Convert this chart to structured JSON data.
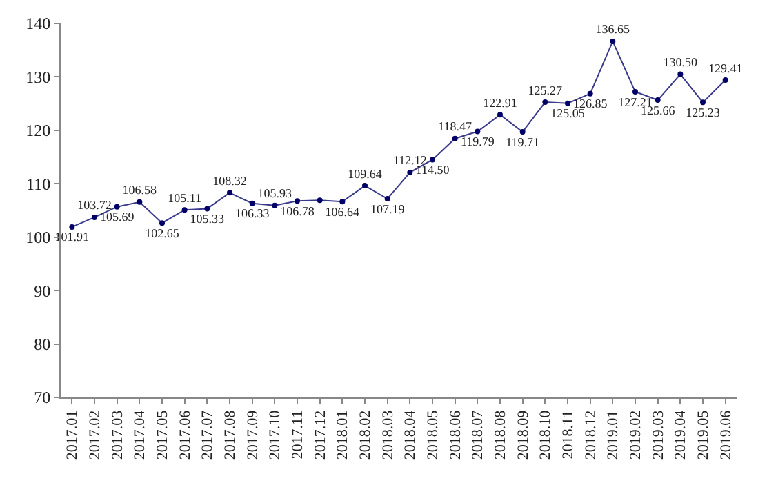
{
  "chart_data": {
    "type": "line",
    "categories": [
      "2017.01",
      "2017.02",
      "2017.03",
      "2017.04",
      "2017.05",
      "2017.06",
      "2017.07",
      "2017.08",
      "2017.09",
      "2017.10",
      "2017.11",
      "2017.12",
      "2018.01",
      "2018.02",
      "2018.03",
      "2018.04",
      "2018.05",
      "2018.06",
      "2018.07",
      "2018.08",
      "2018.09",
      "2018.10",
      "2018.11",
      "2018.12",
      "2019.01",
      "2019.02",
      "2019.03",
      "2019.04",
      "2019.05",
      "2019.06"
    ],
    "series": [
      {
        "color": "#3a3a8c",
        "values": [
          101.91,
          103.72,
          105.69,
          106.58,
          102.65,
          105.11,
          105.33,
          108.32,
          106.33,
          105.93,
          106.78,
          106.9,
          106.64,
          109.64,
          107.19,
          112.12,
          114.5,
          118.47,
          119.79,
          122.91,
          119.71,
          125.27,
          125.05,
          126.85,
          136.65,
          127.21,
          125.66,
          130.5,
          125.23,
          129.41
        ],
        "value_labels": [
          "101.91",
          "103.72",
          "105.69",
          "106.58",
          "102.65",
          "105.11",
          "105.33",
          "108.32",
          "106.33",
          "105.93",
          "106.78",
          null,
          "106.64",
          "109.64",
          "107.19",
          "112.12",
          "114.50",
          "118.47",
          "119.79",
          "122.91",
          "119.71",
          "125.27",
          "125.05",
          "126.85",
          "136.65",
          "127.21",
          "125.66",
          "130.50",
          "125.23",
          "129.41"
        ]
      }
    ],
    "ylim": [
      70,
      140
    ],
    "yticks": [
      70,
      80,
      90,
      100,
      110,
      120,
      130,
      140
    ],
    "legend": false,
    "marker": "circle",
    "line_style": "solid"
  }
}
